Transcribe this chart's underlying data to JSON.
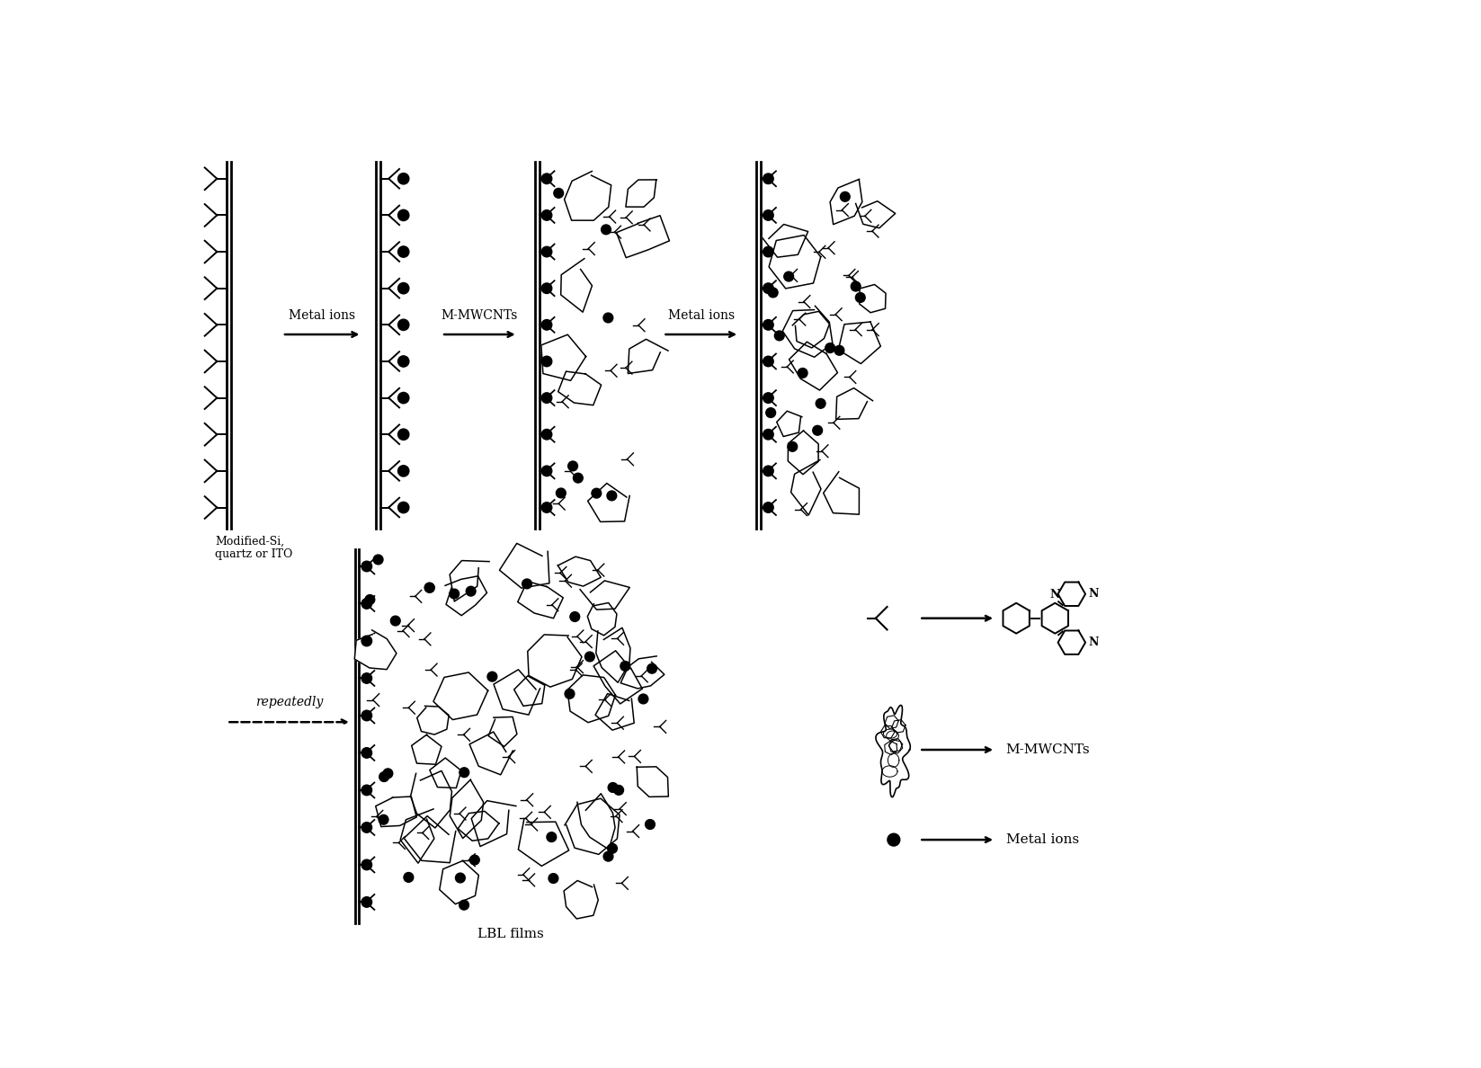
{
  "background_color": "#ffffff",
  "line_color": "#000000",
  "fig_width": 16.47,
  "fig_height": 11.88,
  "text_labels": {
    "metal_ions_1": "Metal ions",
    "mmwcnts": "M-MWCNTs",
    "metal_ions_2": "Metal ions",
    "repeatedly": "repeatedly",
    "lbl_films": "LBL films",
    "modified_si": "Modified-Si,\nquartz or ITO",
    "legend_tpy": "M-MWCNTs",
    "legend_metal": "Metal ions"
  }
}
